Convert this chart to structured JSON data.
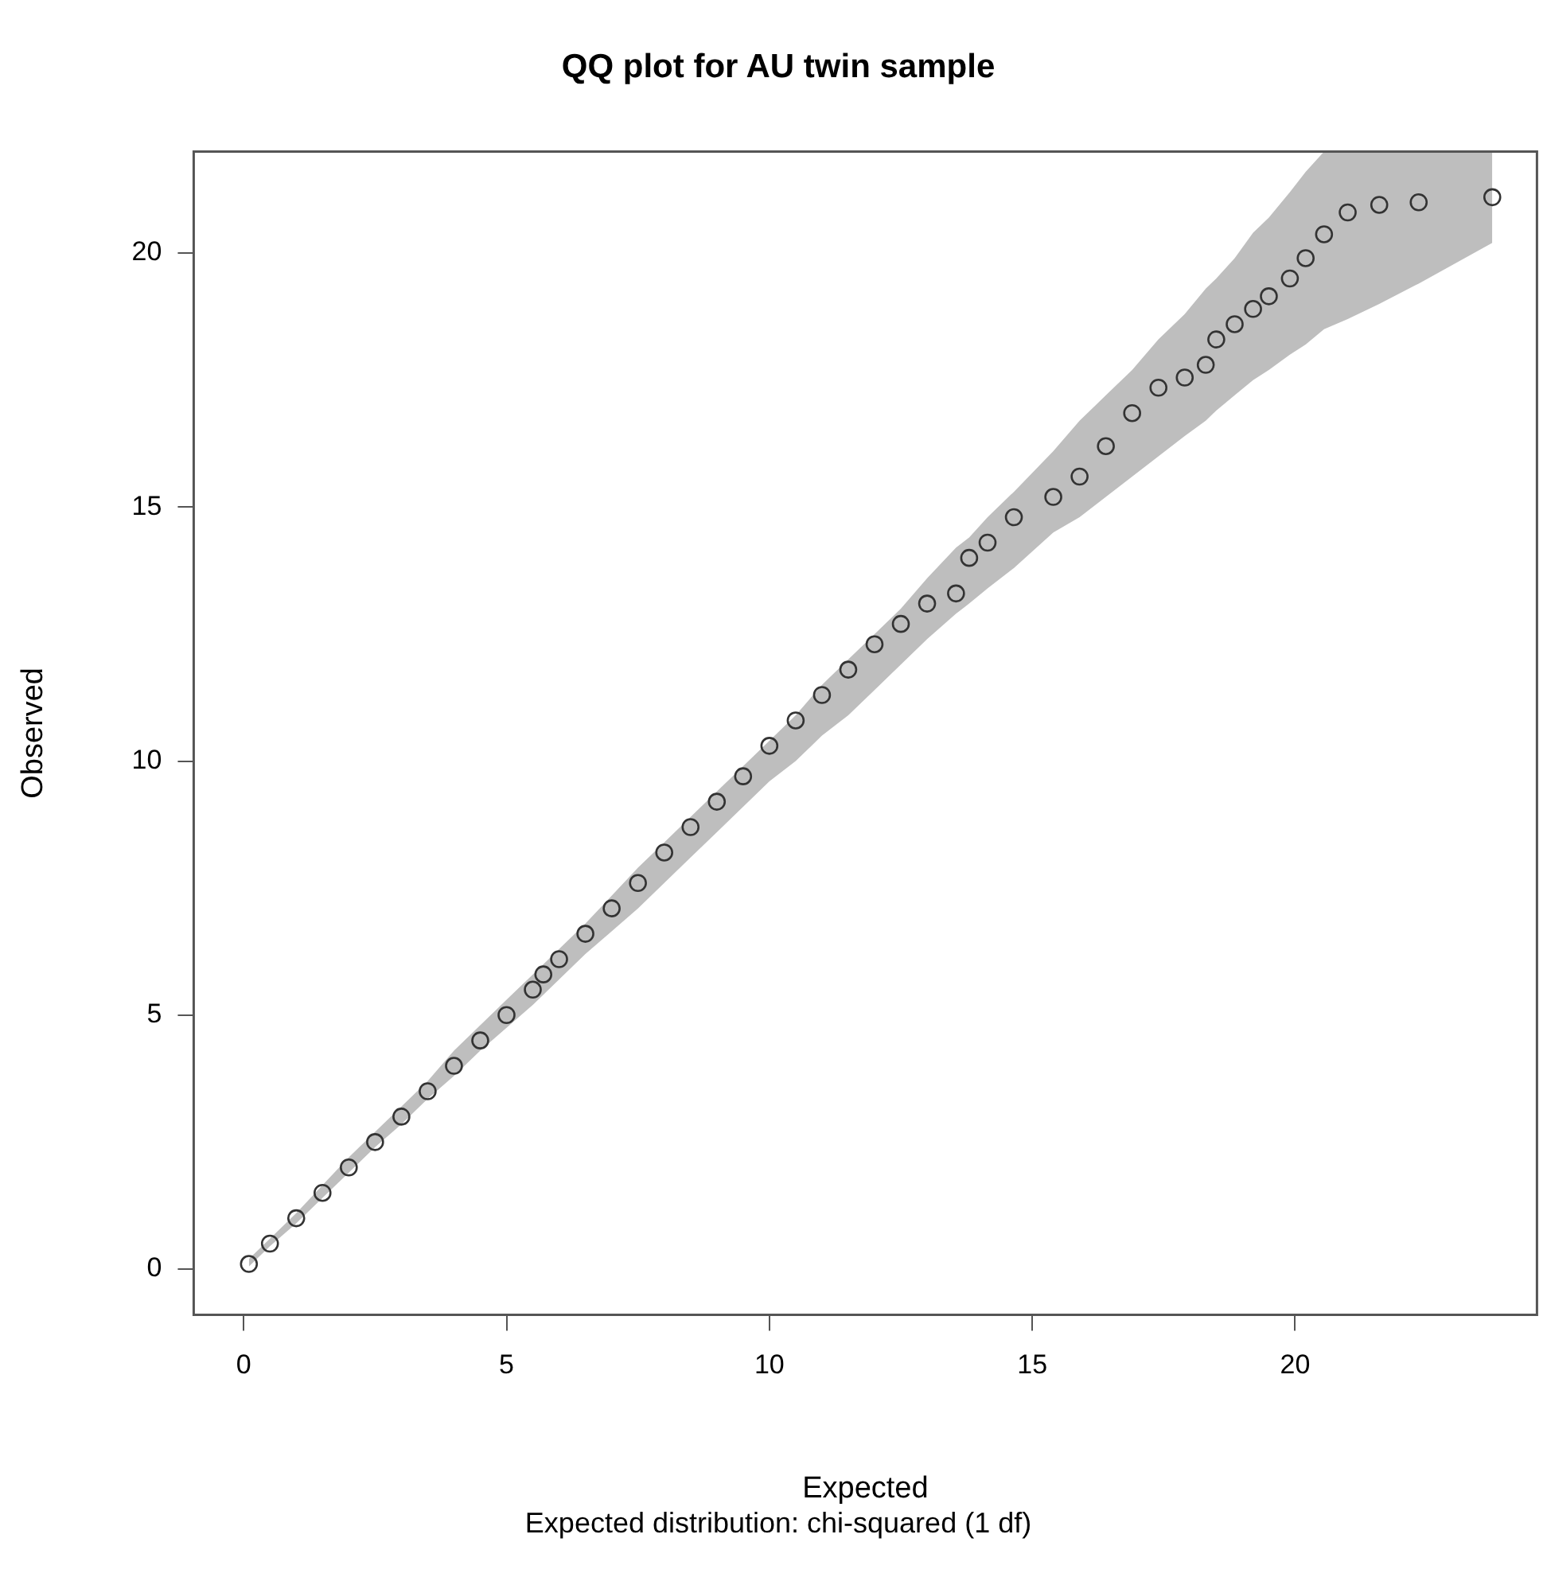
{
  "chart_data": {
    "type": "scatter",
    "title": "QQ plot for AU twin sample",
    "xlabel": "Expected",
    "ylabel": "Observed",
    "annotations": [
      "Expected distribution: chi-squared (1 df)"
    ],
    "xlim": [
      -0.95,
      24.6
    ],
    "ylim": [
      -0.9,
      22
    ],
    "xticks": [
      0,
      5,
      10,
      15,
      20
    ],
    "yticks": [
      0,
      5,
      10,
      15,
      20
    ],
    "grid": false,
    "marker": "circle",
    "series": [
      {
        "type": "scatter",
        "color": "#333333",
        "x": [
          0.1,
          0.5,
          1,
          1.5,
          2,
          2.5,
          3,
          3.5,
          4,
          4.5,
          5,
          5.5,
          5.7,
          6,
          6.5,
          7,
          7.5,
          8,
          8.5,
          9,
          9.5,
          10,
          10.5,
          11,
          11.5,
          12,
          12.5,
          13,
          13.55,
          13.8,
          14.15,
          14.65,
          15.4,
          15.9,
          16.4,
          16.9,
          17.4,
          17.9,
          18.3,
          18.5,
          18.85,
          19.2,
          19.5,
          19.9,
          20.2,
          20.55,
          21.0,
          21.6,
          22.35,
          23.75
        ],
        "values": [
          0.1,
          0.5,
          1,
          1.5,
          2,
          2.5,
          3,
          3.5,
          4,
          4.5,
          5,
          5.5,
          5.8,
          6.1,
          6.6,
          7.1,
          7.6,
          8.2,
          8.7,
          9.2,
          9.7,
          10.3,
          10.8,
          11.3,
          11.8,
          12.3,
          12.7,
          13.1,
          13.3,
          14.0,
          14.3,
          14.8,
          15.2,
          15.6,
          16.2,
          16.85,
          17.35,
          17.55,
          17.8,
          18.3,
          18.6,
          18.9,
          19.15,
          19.5,
          19.9,
          20.37,
          20.8,
          20.95,
          21.0,
          21.1
        ],
        "lower": [
          0.05,
          0.45,
          0.9,
          1.4,
          1.9,
          2.4,
          2.85,
          3.35,
          3.8,
          4.3,
          4.75,
          5.2,
          5.4,
          5.7,
          6.2,
          6.65,
          7.1,
          7.6,
          8.1,
          8.6,
          9.1,
          9.6,
          10.0,
          10.5,
          10.9,
          11.4,
          11.9,
          12.4,
          12.9,
          13.1,
          13.4,
          13.8,
          14.5,
          14.8,
          15.2,
          15.6,
          16.0,
          16.4,
          16.7,
          16.9,
          17.2,
          17.5,
          17.7,
          18.0,
          18.2,
          18.5,
          18.7,
          19.0,
          19.4,
          20.2
        ],
        "upper": [
          0.2,
          0.6,
          1.1,
          1.65,
          2.2,
          2.7,
          3.2,
          3.7,
          4.3,
          4.8,
          5.3,
          5.8,
          6.0,
          6.3,
          6.8,
          7.35,
          7.9,
          8.4,
          8.9,
          9.4,
          9.9,
          10.4,
          10.9,
          11.5,
          12.0,
          12.5,
          13.0,
          13.6,
          14.2,
          14.4,
          14.8,
          15.3,
          16.1,
          16.7,
          17.2,
          17.7,
          18.3,
          18.8,
          19.3,
          19.5,
          19.9,
          20.4,
          20.7,
          21.2,
          21.6,
          22,
          22,
          22,
          22,
          22
        ]
      }
    ]
  }
}
